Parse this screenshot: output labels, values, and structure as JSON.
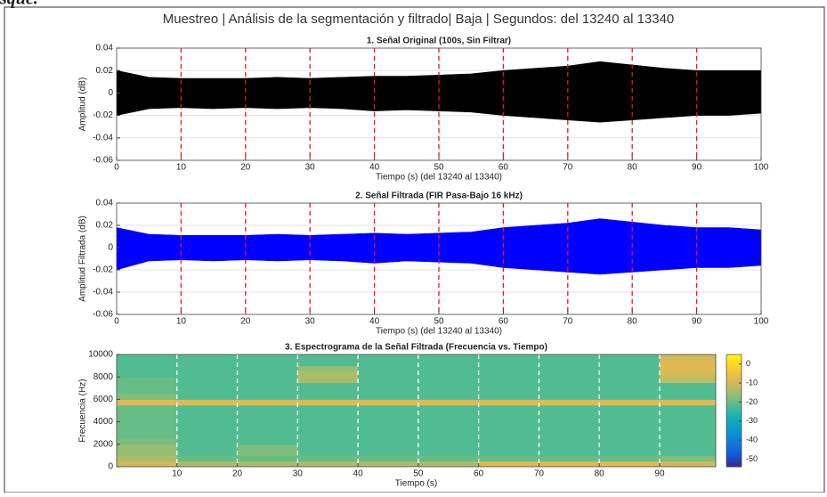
{
  "header": {
    "caption_fragment": "bosque.",
    "title": "Muestreo | Análisis de la segmentación y filtrado| Baja | Segundos: del 13240 al 13340"
  },
  "chart_data": [
    {
      "type": "band",
      "title": "1. Señal Original (100s, Sin Filtrar)",
      "xlabel": "Tiempo (s) (del 13240 al 13340)",
      "ylabel": "Amplitud (dB)",
      "x": [
        0,
        5,
        10,
        15,
        20,
        25,
        30,
        35,
        40,
        45,
        50,
        55,
        60,
        65,
        70,
        75,
        80,
        85,
        90,
        95,
        100
      ],
      "series": [
        {
          "color": "#000000",
          "values": [
            0.02,
            0.014,
            0.013,
            0.013,
            0.013,
            0.014,
            0.013,
            0.014,
            0.015,
            0.015,
            0.016,
            0.017,
            0.02,
            0.022,
            0.024,
            0.028,
            0.025,
            0.022,
            0.02,
            0.02,
            0.02
          ]
        },
        {
          "color": "#000000",
          "values": [
            -0.02,
            -0.014,
            -0.013,
            -0.014,
            -0.013,
            -0.014,
            -0.013,
            -0.014,
            -0.016,
            -0.015,
            -0.016,
            -0.017,
            -0.02,
            -0.022,
            -0.024,
            -0.026,
            -0.024,
            -0.022,
            -0.02,
            -0.02,
            -0.018
          ]
        }
      ],
      "segment_lines": {
        "values": [
          10,
          20,
          30,
          40,
          50,
          60,
          70,
          80,
          90
        ],
        "color": "#e41a1c"
      },
      "xlim": [
        0,
        100
      ],
      "ylim": [
        -0.06,
        0.04
      ],
      "xticks": [
        0,
        10,
        20,
        30,
        40,
        50,
        60,
        70,
        80,
        90,
        100
      ],
      "yticks": [
        -0.06,
        -0.04,
        -0.02,
        0,
        0.02,
        0.04
      ],
      "grid": true
    },
    {
      "type": "band",
      "title": "2. Señal Filtrada (FIR Pasa-Bajo 16 kHz)",
      "xlabel": "Tiempo (s) (del 13240 al 13340)",
      "ylabel": "Amplitud Filtrada (dB)",
      "x": [
        0,
        5,
        10,
        15,
        20,
        25,
        30,
        35,
        40,
        45,
        50,
        55,
        60,
        65,
        70,
        75,
        80,
        85,
        90,
        95,
        100
      ],
      "series": [
        {
          "color": "#0000ff",
          "values": [
            0.018,
            0.012,
            0.011,
            0.011,
            0.011,
            0.012,
            0.011,
            0.012,
            0.013,
            0.012,
            0.013,
            0.014,
            0.018,
            0.02,
            0.022,
            0.026,
            0.023,
            0.02,
            0.018,
            0.018,
            0.016
          ]
        },
        {
          "color": "#0000ff",
          "values": [
            -0.02,
            -0.012,
            -0.011,
            -0.012,
            -0.011,
            -0.012,
            -0.011,
            -0.012,
            -0.014,
            -0.012,
            -0.013,
            -0.014,
            -0.018,
            -0.02,
            -0.022,
            -0.024,
            -0.022,
            -0.02,
            -0.018,
            -0.018,
            -0.016
          ]
        }
      ],
      "segment_lines": {
        "values": [
          10,
          20,
          30,
          40,
          50,
          60,
          70,
          80,
          90
        ],
        "color": "#e41a1c"
      },
      "xlim": [
        0,
        100
      ],
      "ylim": [
        -0.06,
        0.04
      ],
      "xticks": [
        0,
        10,
        20,
        30,
        40,
        50,
        60,
        70,
        80,
        90,
        100
      ],
      "yticks": [
        -0.06,
        -0.04,
        -0.02,
        0,
        0.02,
        0.04
      ],
      "grid": true
    },
    {
      "type": "heatmap",
      "title": "3. Espectrograma de la Señal Filtrada (Frecuencia vs. Tiempo)",
      "xlabel": "Tiempo (s)",
      "ylabel": "Frecuencia (Hz)",
      "x_edges": [
        0,
        10,
        20,
        30,
        40,
        50,
        60,
        70,
        80,
        90,
        99.3
      ],
      "y_edges": [
        0,
        500,
        1000,
        1500,
        2000,
        2500,
        3000,
        3500,
        4000,
        4500,
        5000,
        5500,
        6000,
        6500,
        7000,
        7500,
        8000,
        8500,
        9000,
        9500,
        10000
      ],
      "z": [
        [
          -10,
          -14,
          -14,
          -14,
          -14,
          -14,
          -8,
          -8,
          -8,
          -10
        ],
        [
          -14,
          -20,
          -20,
          -20,
          -20,
          -20,
          -20,
          -20,
          -20,
          -18
        ],
        [
          -16,
          -22,
          -18,
          -22,
          -22,
          -22,
          -22,
          -22,
          -22,
          -22
        ],
        [
          -16,
          -22,
          -18,
          -22,
          -22,
          -22,
          -22,
          -22,
          -22,
          -22
        ],
        [
          -18,
          -22,
          -22,
          -22,
          -22,
          -22,
          -22,
          -22,
          -22,
          -22
        ],
        [
          -20,
          -22,
          -22,
          -22,
          -22,
          -22,
          -22,
          -22,
          -22,
          -22
        ],
        [
          -20,
          -22,
          -22,
          -22,
          -22,
          -22,
          -22,
          -22,
          -22,
          -22
        ],
        [
          -20,
          -22,
          -22,
          -22,
          -22,
          -22,
          -22,
          -22,
          -22,
          -22
        ],
        [
          -20,
          -22,
          -22,
          -22,
          -22,
          -22,
          -22,
          -22,
          -22,
          -22
        ],
        [
          -20,
          -22,
          -22,
          -22,
          -22,
          -22,
          -22,
          -22,
          -22,
          -22
        ],
        [
          -20,
          -22,
          -22,
          -22,
          -22,
          -22,
          -22,
          -22,
          -22,
          -22
        ],
        [
          -8,
          -8,
          -8,
          -8,
          -8,
          -8,
          -8,
          -8,
          -8,
          -8
        ],
        [
          -18,
          -22,
          -22,
          -22,
          -22,
          -22,
          -22,
          -22,
          -22,
          -22
        ],
        [
          -20,
          -22,
          -22,
          -22,
          -22,
          -22,
          -22,
          -22,
          -22,
          -22
        ],
        [
          -20,
          -22,
          -22,
          -22,
          -22,
          -22,
          -22,
          -22,
          -22,
          -22
        ],
        [
          -20,
          -22,
          -22,
          -14,
          -22,
          -22,
          -22,
          -22,
          -22,
          -12
        ],
        [
          -22,
          -22,
          -22,
          -14,
          -22,
          -22,
          -22,
          -22,
          -22,
          -10
        ],
        [
          -22,
          -22,
          -22,
          -16,
          -22,
          -22,
          -22,
          -22,
          -22,
          -8
        ],
        [
          -22,
          -22,
          -22,
          -22,
          -22,
          -22,
          -22,
          -22,
          -22,
          -8
        ],
        [
          -22,
          -22,
          -22,
          -22,
          -22,
          -22,
          -22,
          -22,
          -22,
          -10
        ]
      ],
      "segment_lines": {
        "values": [
          10,
          20,
          30,
          40,
          50,
          60,
          70,
          80,
          90
        ],
        "color": "#ffffff"
      },
      "xlim": [
        0,
        99.3
      ],
      "ylim": [
        0,
        10000
      ],
      "xticks": [
        10,
        20,
        30,
        40,
        50,
        60,
        70,
        80,
        90
      ],
      "yticks": [
        0,
        2000,
        4000,
        6000,
        8000,
        10000
      ],
      "clim": [
        -54,
        5
      ],
      "cticks": [
        -50,
        -40,
        -30,
        -20,
        -10,
        0
      ],
      "colormap": "parula"
    }
  ]
}
